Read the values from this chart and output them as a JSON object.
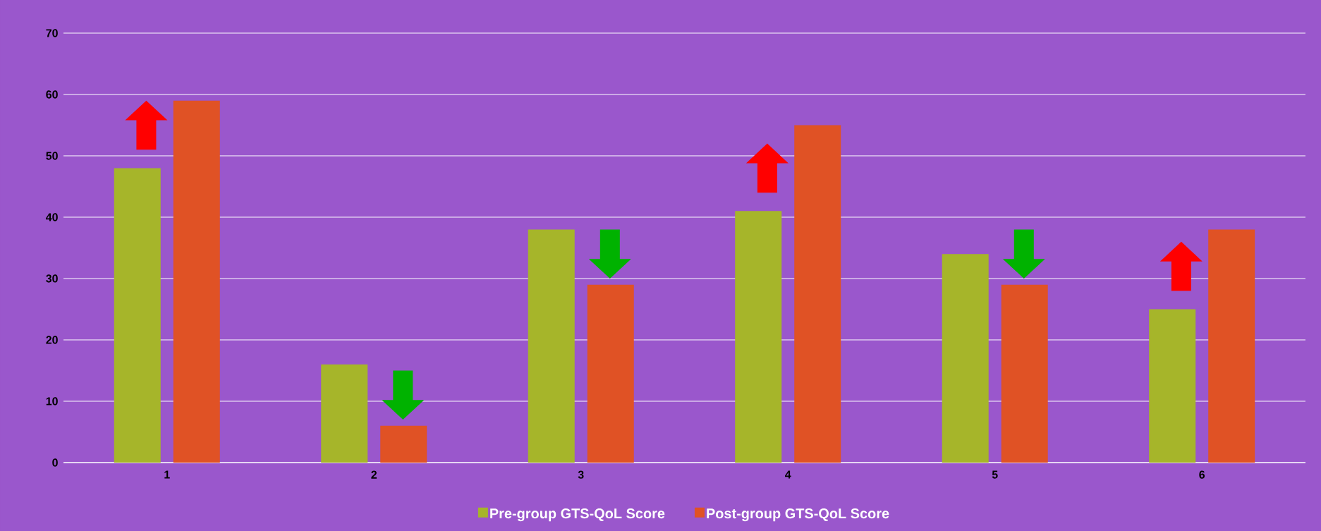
{
  "chart_data": {
    "type": "bar",
    "categories": [
      "1",
      "2",
      "3",
      "4",
      "5",
      "6"
    ],
    "series": [
      {
        "name": "Pre-group GTS-QoL Score",
        "color": "#a6b52a",
        "values": [
          48,
          16,
          38,
          41,
          34,
          25
        ]
      },
      {
        "name": "Post-group GTS-QoL Score",
        "color": "#e05225",
        "values": [
          59,
          6,
          29,
          55,
          29,
          38
        ]
      }
    ],
    "ylim": [
      0,
      70
    ],
    "yticks": [
      0,
      10,
      20,
      30,
      40,
      50,
      60,
      70
    ],
    "grid": "y",
    "legend": "bottom"
  }
}
